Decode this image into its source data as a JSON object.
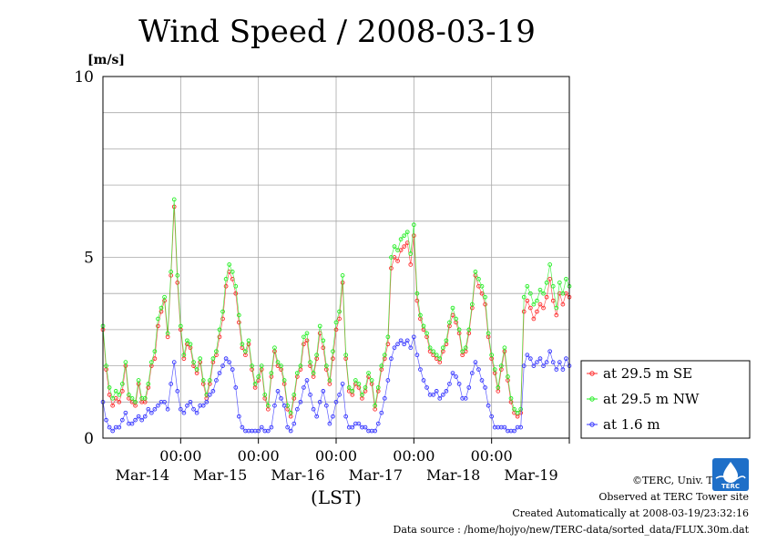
{
  "chart_data": {
    "type": "line",
    "title": "Wind Speed / 2008-03-19",
    "ylabel": "[m/s]",
    "xlabel": "(LST)",
    "ylim": [
      0,
      10
    ],
    "yticks": [
      "0",
      "5",
      "10"
    ],
    "xlim_hours": [
      -13,
      131
    ],
    "time_ticks": [
      {
        "hour": 11,
        "label": "00:00",
        "date": "Mar-14"
      },
      {
        "hour": 35,
        "label": "00:00",
        "date": "Mar-15"
      },
      {
        "hour": 59,
        "label": "00:00",
        "date": "Mar-16"
      },
      {
        "hour": 83,
        "label": "00:00",
        "date": "Mar-17"
      },
      {
        "hour": 107,
        "label": "00:00",
        "date": "Mar-18"
      },
      {
        "hour": 131,
        "label": "",
        "date": "Mar-19"
      }
    ],
    "grid": true,
    "legend_position": "right",
    "series": [
      {
        "name": "at 29.5 m SE",
        "color": "#ff2a2a",
        "x": [
          -13,
          -12,
          -11,
          -10,
          -9,
          -8,
          -7,
          -6,
          -5,
          -4,
          -3,
          -2,
          -1,
          0,
          1,
          2,
          3,
          4,
          5,
          6,
          7,
          8,
          9,
          10,
          11,
          12,
          13,
          14,
          15,
          16,
          17,
          18,
          19,
          20,
          21,
          22,
          23,
          24,
          25,
          26,
          27,
          28,
          29,
          30,
          31,
          32,
          33,
          34,
          35,
          36,
          37,
          38,
          39,
          40,
          41,
          42,
          43,
          44,
          45,
          46,
          47,
          48,
          49,
          50,
          51,
          52,
          53,
          54,
          55,
          56,
          57,
          58,
          59,
          60,
          61,
          62,
          63,
          64,
          65,
          66,
          67,
          68,
          69,
          70,
          71,
          72,
          73,
          74,
          75,
          76,
          77,
          78,
          79,
          80,
          81,
          82,
          83,
          84,
          85,
          86,
          87,
          88,
          89,
          90,
          91,
          92,
          93,
          94,
          95,
          96,
          97,
          98,
          99,
          100,
          101,
          102,
          103,
          104,
          105,
          106,
          107,
          108,
          109,
          110,
          111,
          112,
          113,
          114,
          115,
          116,
          117,
          118,
          119,
          120,
          121,
          122,
          123,
          124,
          125,
          126,
          127,
          128,
          129,
          130,
          131
        ],
        "values": [
          3.0,
          1.9,
          1.2,
          0.9,
          1.1,
          1.0,
          1.3,
          2.0,
          1.1,
          1.0,
          0.9,
          1.5,
          1.0,
          1.0,
          1.4,
          2.0,
          2.2,
          3.1,
          3.5,
          3.8,
          2.8,
          4.5,
          6.4,
          4.3,
          3.0,
          2.2,
          2.6,
          2.5,
          2.0,
          1.8,
          2.1,
          1.5,
          1.1,
          1.5,
          2.1,
          2.3,
          2.8,
          3.3,
          4.2,
          4.6,
          4.4,
          4.0,
          3.2,
          2.5,
          2.3,
          2.6,
          1.9,
          1.4,
          1.6,
          1.9,
          1.1,
          0.8,
          1.7,
          2.4,
          2.0,
          1.9,
          1.5,
          0.8,
          0.6,
          1.1,
          1.7,
          1.9,
          2.6,
          2.7,
          2.0,
          1.7,
          2.2,
          2.9,
          2.5,
          1.9,
          1.5,
          2.2,
          3.0,
          3.3,
          4.3,
          2.2,
          1.3,
          1.2,
          1.5,
          1.4,
          1.1,
          1.3,
          1.7,
          1.5,
          0.8,
          1.3,
          1.9,
          2.2,
          2.6,
          4.7,
          5.0,
          4.9,
          5.2,
          5.3,
          5.4,
          4.8,
          5.6,
          3.8,
          3.3,
          3.0,
          2.8,
          2.4,
          2.3,
          2.2,
          2.1,
          2.4,
          2.6,
          3.1,
          3.4,
          3.2,
          2.9,
          2.3,
          2.4,
          2.9,
          3.6,
          4.5,
          4.2,
          4.0,
          3.7,
          2.8,
          2.2,
          1.8,
          1.3,
          1.9,
          2.4,
          1.6,
          1.0,
          0.7,
          0.6,
          0.7,
          3.5,
          3.8,
          3.6,
          3.3,
          3.5,
          3.7,
          3.6,
          3.9,
          4.4,
          3.8,
          3.4,
          4.0,
          3.7,
          4.0,
          3.9
        ],
        "values_note": "approx. hourly values"
      },
      {
        "name": "at 29.5 m NW",
        "color": "#22ee22",
        "x": [
          -13,
          -12,
          -11,
          -10,
          -9,
          -8,
          -7,
          -6,
          -5,
          -4,
          -3,
          -2,
          -1,
          0,
          1,
          2,
          3,
          4,
          5,
          6,
          7,
          8,
          9,
          10,
          11,
          12,
          13,
          14,
          15,
          16,
          17,
          18,
          19,
          20,
          21,
          22,
          23,
          24,
          25,
          26,
          27,
          28,
          29,
          30,
          31,
          32,
          33,
          34,
          35,
          36,
          37,
          38,
          39,
          40,
          41,
          42,
          43,
          44,
          45,
          46,
          47,
          48,
          49,
          50,
          51,
          52,
          53,
          54,
          55,
          56,
          57,
          58,
          59,
          60,
          61,
          62,
          63,
          64,
          65,
          66,
          67,
          68,
          69,
          70,
          71,
          72,
          73,
          74,
          75,
          76,
          77,
          78,
          79,
          80,
          81,
          82,
          83,
          84,
          85,
          86,
          87,
          88,
          89,
          90,
          91,
          92,
          93,
          94,
          95,
          96,
          97,
          98,
          99,
          100,
          101,
          102,
          103,
          104,
          105,
          106,
          107,
          108,
          109,
          110,
          111,
          112,
          113,
          114,
          115,
          116,
          117,
          118,
          119,
          120,
          121,
          122,
          123,
          124,
          125,
          126,
          127,
          128,
          129,
          130,
          131
        ],
        "values": [
          3.1,
          2.0,
          1.4,
          1.1,
          1.3,
          1.2,
          1.5,
          2.1,
          1.2,
          1.1,
          1.0,
          1.6,
          1.1,
          1.1,
          1.5,
          2.1,
          2.4,
          3.3,
          3.6,
          3.9,
          2.9,
          4.6,
          6.6,
          4.5,
          3.1,
          2.3,
          2.7,
          2.6,
          2.1,
          1.9,
          2.2,
          1.6,
          1.2,
          1.6,
          2.2,
          2.4,
          3.0,
          3.5,
          4.4,
          4.8,
          4.6,
          4.2,
          3.4,
          2.6,
          2.4,
          2.7,
          2.0,
          1.5,
          1.7,
          2.0,
          1.2,
          0.9,
          1.8,
          2.5,
          2.1,
          2.0,
          1.6,
          0.9,
          0.7,
          1.2,
          1.8,
          2.0,
          2.8,
          2.9,
          2.1,
          1.8,
          2.3,
          3.1,
          2.7,
          2.0,
          1.6,
          2.4,
          3.2,
          3.5,
          4.5,
          2.3,
          1.4,
          1.3,
          1.6,
          1.5,
          1.2,
          1.4,
          1.8,
          1.6,
          0.9,
          1.4,
          2.0,
          2.3,
          2.8,
          5.0,
          5.3,
          5.2,
          5.5,
          5.6,
          5.7,
          5.1,
          5.9,
          4.0,
          3.4,
          3.1,
          2.9,
          2.5,
          2.4,
          2.3,
          2.2,
          2.5,
          2.7,
          3.2,
          3.6,
          3.3,
          3.0,
          2.4,
          2.5,
          3.0,
          3.7,
          4.6,
          4.4,
          4.2,
          3.9,
          2.9,
          2.3,
          1.9,
          1.4,
          2.0,
          2.5,
          1.7,
          1.1,
          0.8,
          0.7,
          0.8,
          3.9,
          4.2,
          4.0,
          3.7,
          3.8,
          4.1,
          4.0,
          4.3,
          4.8,
          4.2,
          3.6,
          4.3,
          4.0,
          4.4,
          4.2
        ],
        "values_note": "approx. hourly values"
      },
      {
        "name": "at 1.6 m",
        "color": "#3333ff",
        "x": [
          -13,
          -12,
          -11,
          -10,
          -9,
          -8,
          -7,
          -6,
          -5,
          -4,
          -3,
          -2,
          -1,
          0,
          1,
          2,
          3,
          4,
          5,
          6,
          7,
          8,
          9,
          10,
          11,
          12,
          13,
          14,
          15,
          16,
          17,
          18,
          19,
          20,
          21,
          22,
          23,
          24,
          25,
          26,
          27,
          28,
          29,
          30,
          31,
          32,
          33,
          34,
          35,
          36,
          37,
          38,
          39,
          40,
          41,
          42,
          43,
          44,
          45,
          46,
          47,
          48,
          49,
          50,
          51,
          52,
          53,
          54,
          55,
          56,
          57,
          58,
          59,
          60,
          61,
          62,
          63,
          64,
          65,
          66,
          67,
          68,
          69,
          70,
          71,
          72,
          73,
          74,
          75,
          76,
          77,
          78,
          79,
          80,
          81,
          82,
          83,
          84,
          85,
          86,
          87,
          88,
          89,
          90,
          91,
          92,
          93,
          94,
          95,
          96,
          97,
          98,
          99,
          100,
          101,
          102,
          103,
          104,
          105,
          106,
          107,
          108,
          109,
          110,
          111,
          112,
          113,
          114,
          115,
          116,
          117,
          118,
          119,
          120,
          121,
          122,
          123,
          124,
          125,
          126,
          127,
          128,
          129,
          130,
          131
        ],
        "values": [
          1.0,
          0.5,
          0.3,
          0.2,
          0.3,
          0.3,
          0.5,
          0.7,
          0.4,
          0.4,
          0.5,
          0.6,
          0.5,
          0.6,
          0.8,
          0.7,
          0.8,
          0.9,
          1.0,
          1.0,
          0.8,
          1.5,
          2.1,
          1.3,
          0.8,
          0.7,
          0.9,
          1.0,
          0.8,
          0.7,
          0.9,
          0.9,
          1.0,
          1.2,
          1.3,
          1.6,
          1.8,
          2.0,
          2.2,
          2.1,
          1.9,
          1.4,
          0.6,
          0.3,
          0.2,
          0.2,
          0.2,
          0.2,
          0.2,
          0.3,
          0.2,
          0.2,
          0.3,
          0.9,
          1.3,
          1.1,
          0.9,
          0.3,
          0.2,
          0.4,
          0.8,
          1.0,
          1.4,
          1.6,
          1.2,
          0.8,
          0.6,
          1.0,
          1.3,
          0.9,
          0.4,
          0.6,
          1.0,
          1.2,
          1.5,
          0.6,
          0.3,
          0.3,
          0.4,
          0.4,
          0.3,
          0.3,
          0.2,
          0.2,
          0.2,
          0.4,
          0.7,
          1.1,
          1.6,
          2.2,
          2.5,
          2.6,
          2.7,
          2.6,
          2.7,
          2.5,
          2.8,
          2.3,
          1.9,
          1.6,
          1.4,
          1.2,
          1.2,
          1.3,
          1.1,
          1.2,
          1.3,
          1.5,
          1.8,
          1.7,
          1.5,
          1.1,
          1.1,
          1.4,
          1.8,
          2.1,
          1.9,
          1.6,
          1.4,
          0.9,
          0.6,
          0.3,
          0.3,
          0.3,
          0.3,
          0.2,
          0.2,
          0.2,
          0.3,
          0.3,
          2.0,
          2.3,
          2.2,
          2.0,
          2.1,
          2.2,
          2.0,
          2.1,
          2.4,
          2.1,
          1.9,
          2.1,
          1.9,
          2.2,
          2.0
        ],
        "values_note": "approx. hourly values"
      }
    ]
  },
  "credits": {
    "copyright": "©TERC, Univ. Tsukuba",
    "site": "Observed at TERC Tower site",
    "created": "Created Automatically at 2008-03-19/23:32:16",
    "source": "Data source : /home/hojyo/new/TERC-data/sorted_data/FLUX.30m.dat"
  },
  "logo": {
    "text": "TERC",
    "icon": "terc-logo-icon"
  }
}
